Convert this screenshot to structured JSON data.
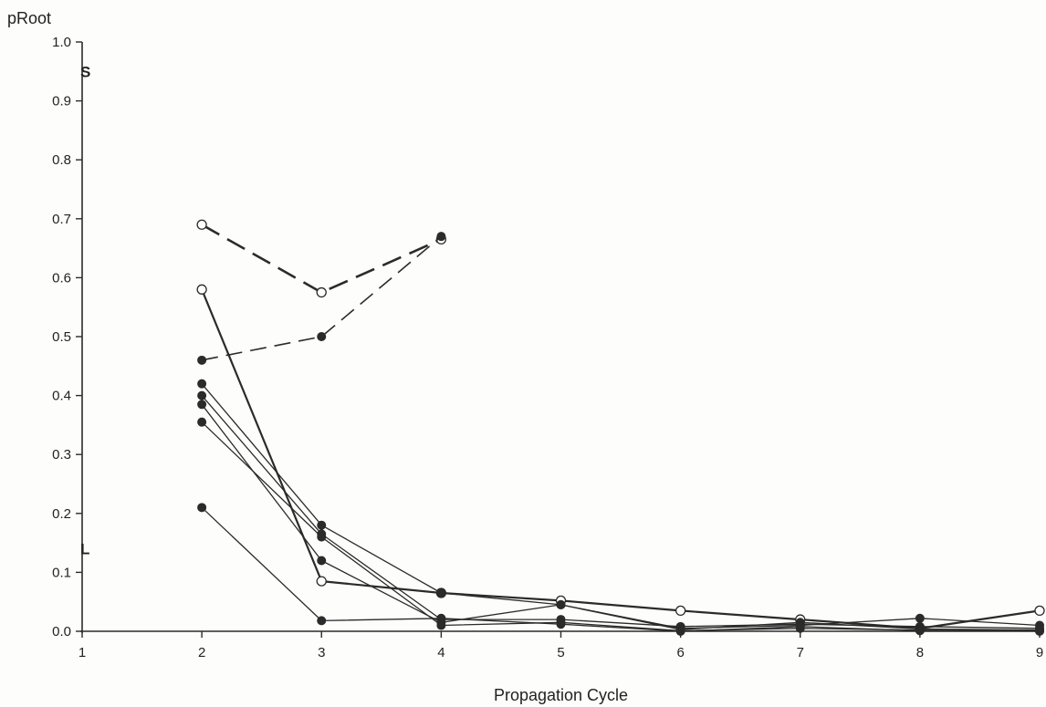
{
  "chart_data": {
    "type": "line",
    "title": "",
    "xlabel": "Propagation Cycle",
    "ylabel": "pRoot",
    "xlim": [
      1,
      9
    ],
    "ylim": [
      0,
      1.0
    ],
    "x_ticks": [
      "1",
      "2",
      "3",
      "4",
      "5",
      "6",
      "7",
      "8",
      "9"
    ],
    "y_ticks": [
      "0.0",
      "0.1",
      "0.2",
      "0.3",
      "0.4",
      "0.5",
      "0.6",
      "0.7",
      "0.8",
      "0.9",
      "1.0"
    ],
    "axis_marks": [
      {
        "text": "S",
        "y": 0.95
      },
      {
        "text": "L",
        "y": 0.14
      }
    ],
    "grid": false,
    "legend": "none",
    "series": [
      {
        "style": "dashed-heavy",
        "marker": "open",
        "x": [
          2,
          3,
          4
        ],
        "y": [
          0.69,
          0.575,
          0.665
        ]
      },
      {
        "style": "dashed",
        "marker": "filled",
        "x": [
          2,
          3,
          4
        ],
        "y": [
          0.46,
          0.5,
          0.67
        ]
      },
      {
        "style": "solid-heavy",
        "marker": "open",
        "x": [
          2,
          3,
          4,
          5,
          6,
          7,
          8,
          9
        ],
        "y": [
          0.58,
          0.085,
          0.065,
          0.052,
          0.035,
          0.02,
          0.005,
          0.035
        ]
      },
      {
        "style": "solid",
        "marker": "filled",
        "x": [
          2,
          3,
          4,
          5,
          6,
          7,
          8,
          9
        ],
        "y": [
          0.42,
          0.18,
          0.065,
          0.045,
          0.005,
          0.01,
          0.022,
          0.01
        ]
      },
      {
        "style": "solid",
        "marker": "filled",
        "x": [
          2,
          3,
          4,
          5,
          6,
          7,
          8,
          9
        ],
        "y": [
          0.4,
          0.165,
          0.02,
          0.02,
          0.008,
          0.012,
          0.008,
          0.005
        ]
      },
      {
        "style": "solid",
        "marker": "filled",
        "x": [
          2,
          3,
          4,
          5,
          6,
          7,
          8,
          9
        ],
        "y": [
          0.385,
          0.12,
          0.015,
          0.045,
          0.003,
          0.015,
          0.004,
          0.002
        ]
      },
      {
        "style": "solid",
        "marker": "filled",
        "x": [
          2,
          3,
          4,
          5,
          6,
          7,
          8,
          9
        ],
        "y": [
          0.355,
          0.16,
          0.01,
          0.015,
          0.001,
          0.005,
          0.002,
          0.001
        ]
      },
      {
        "style": "solid",
        "marker": "filled",
        "x": [
          2,
          3,
          4,
          5,
          6,
          7,
          8,
          9
        ],
        "y": [
          0.21,
          0.018,
          0.022,
          0.012,
          0.0,
          0.008,
          0.001,
          0.0
        ]
      }
    ],
    "colors": {
      "ink": "#2b2b2b",
      "background": "#fdfdfb"
    }
  }
}
